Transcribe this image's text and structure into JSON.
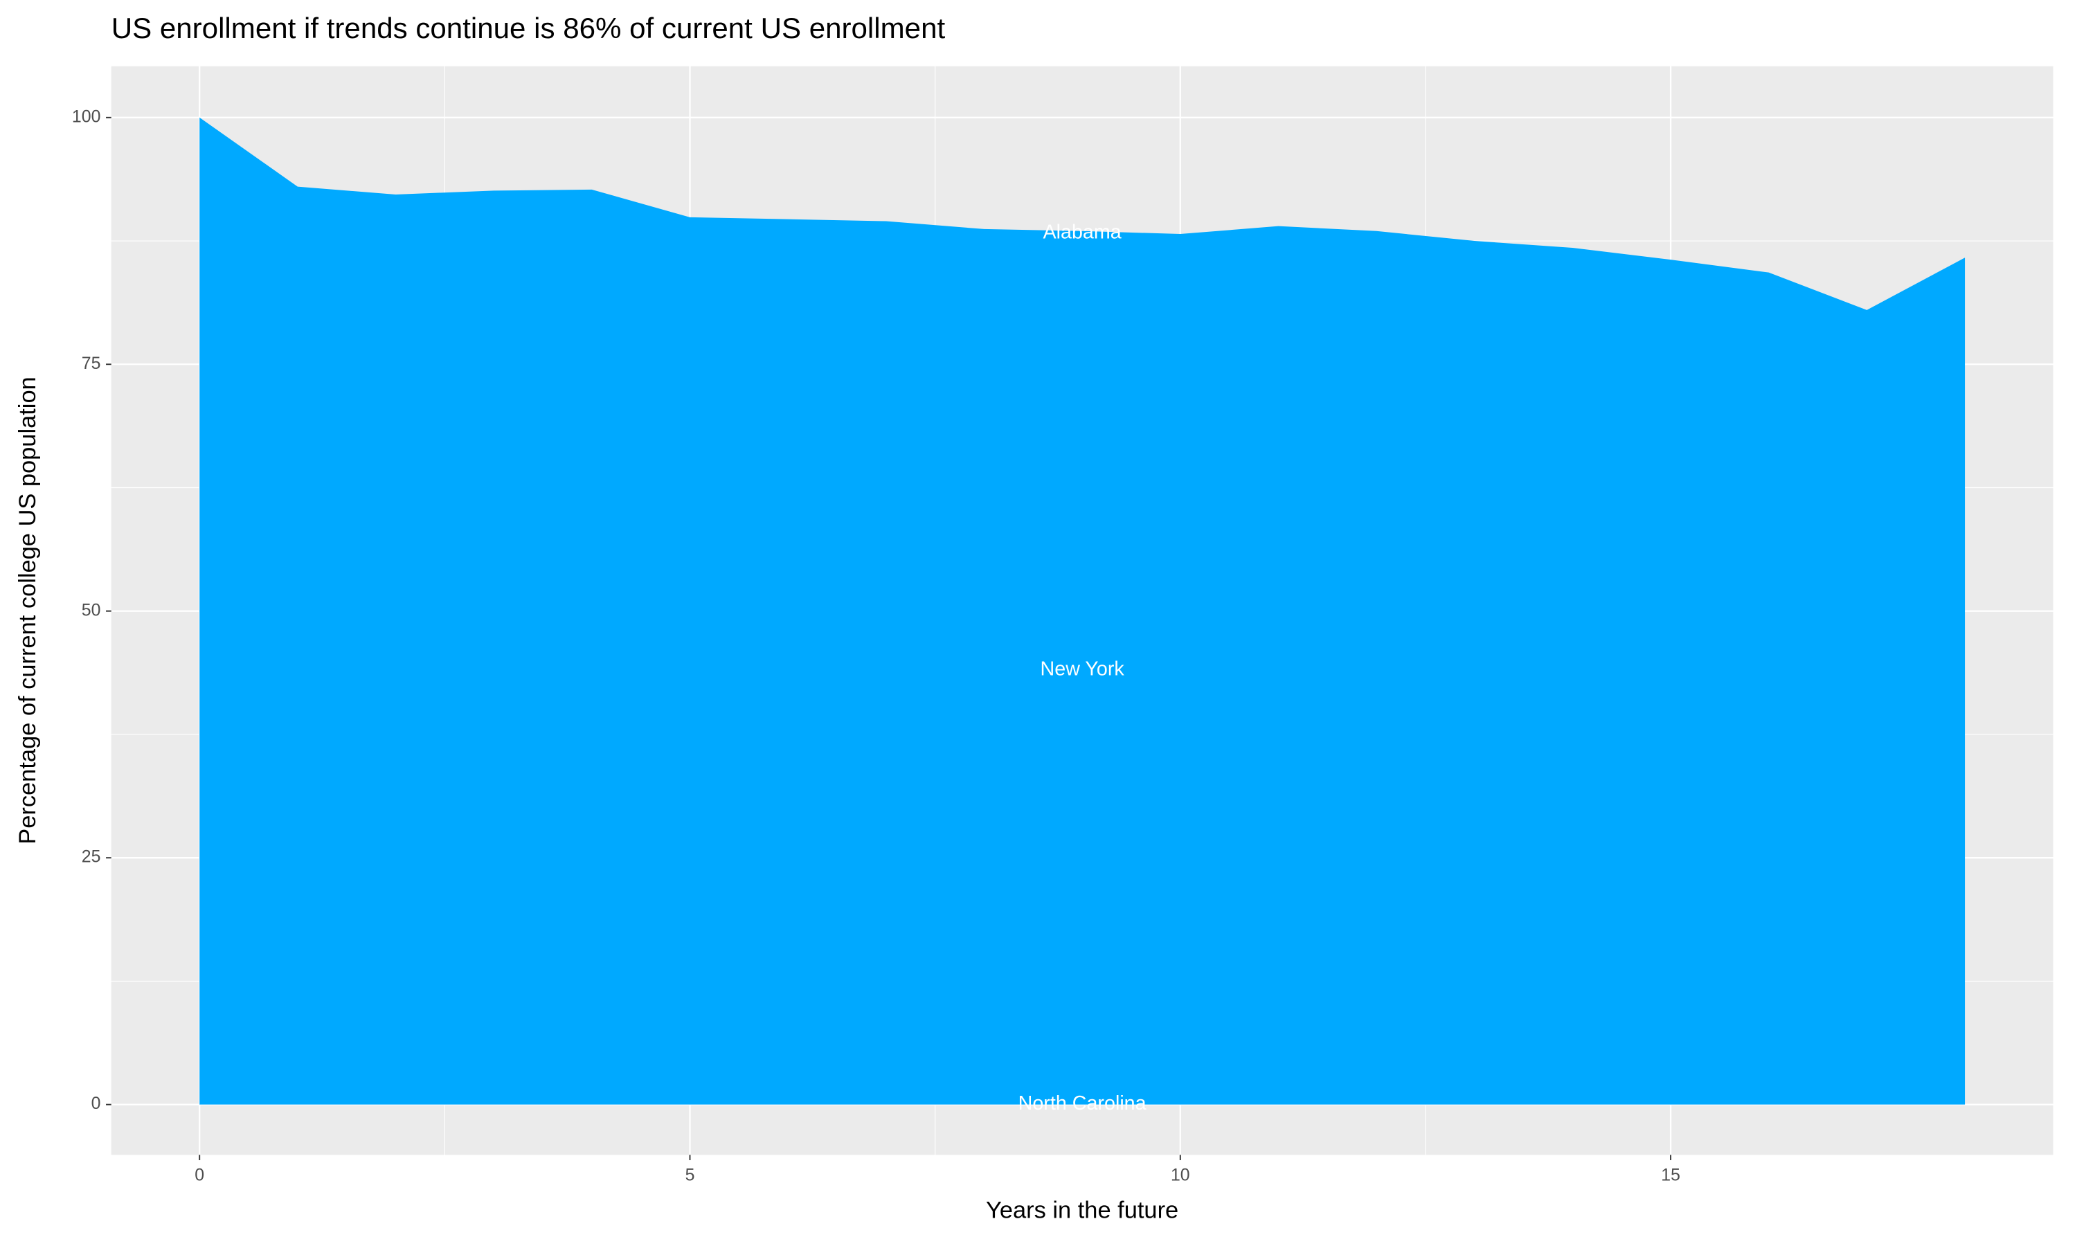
{
  "chart_data": {
    "type": "area",
    "title": "US enrollment if trends continue is 86% of current US enrollment",
    "x_label": "Years in the future",
    "y_label": "Percentage of current college US population",
    "x": [
      0,
      1,
      2,
      3,
      4,
      5,
      6,
      7,
      8,
      9,
      10,
      11,
      12,
      13,
      14,
      15,
      16,
      17,
      18
    ],
    "values": [
      100,
      93.0,
      92.2,
      92.6,
      92.7,
      89.9,
      89.7,
      89.5,
      88.7,
      88.5,
      88.2,
      89.0,
      88.5,
      87.5,
      86.8,
      85.6,
      84.3,
      80.5,
      85.8
    ],
    "color": "#00a9ff",
    "area_labels": [
      "Alabama",
      "New York",
      "North Carolina"
    ],
    "xlim": [
      -0.9,
      18.9
    ],
    "ylim": [
      -5.1,
      105.2
    ],
    "xticks": [
      0,
      5,
      10,
      15
    ],
    "yticks": [
      0,
      25,
      50,
      75,
      100
    ],
    "grid": true
  }
}
